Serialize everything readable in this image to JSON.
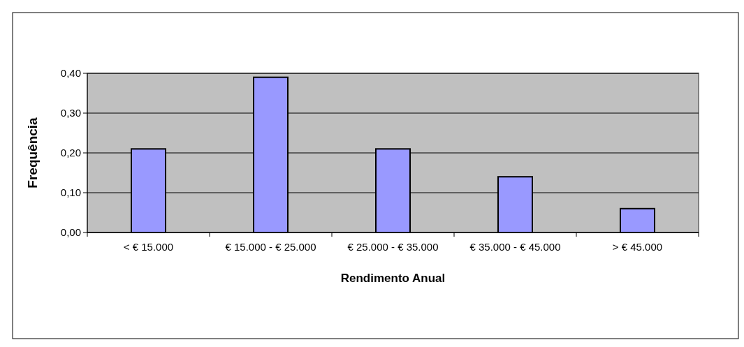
{
  "chart_data": {
    "type": "bar",
    "xlabel": "Rendimento Anual",
    "ylabel": "Frequência",
    "categories": [
      "< € 15.000",
      "€ 15.000 - € 25.000",
      "€ 25.000 - € 35.000",
      "€ 35.000 - € 45.000",
      "> € 45.000"
    ],
    "values": [
      0.21,
      0.39,
      0.21,
      0.14,
      0.06
    ],
    "color": "#9999ff",
    "ylim": [
      0,
      0.4
    ],
    "yticks": [
      {
        "value": 0,
        "label": "0,00"
      },
      {
        "value": 0.1,
        "label": "0,10"
      },
      {
        "value": 0.2,
        "label": "0,20"
      },
      {
        "value": 0.3,
        "label": "0,30"
      },
      {
        "value": 0.4,
        "label": "0,40"
      }
    ],
    "grid": "y"
  }
}
